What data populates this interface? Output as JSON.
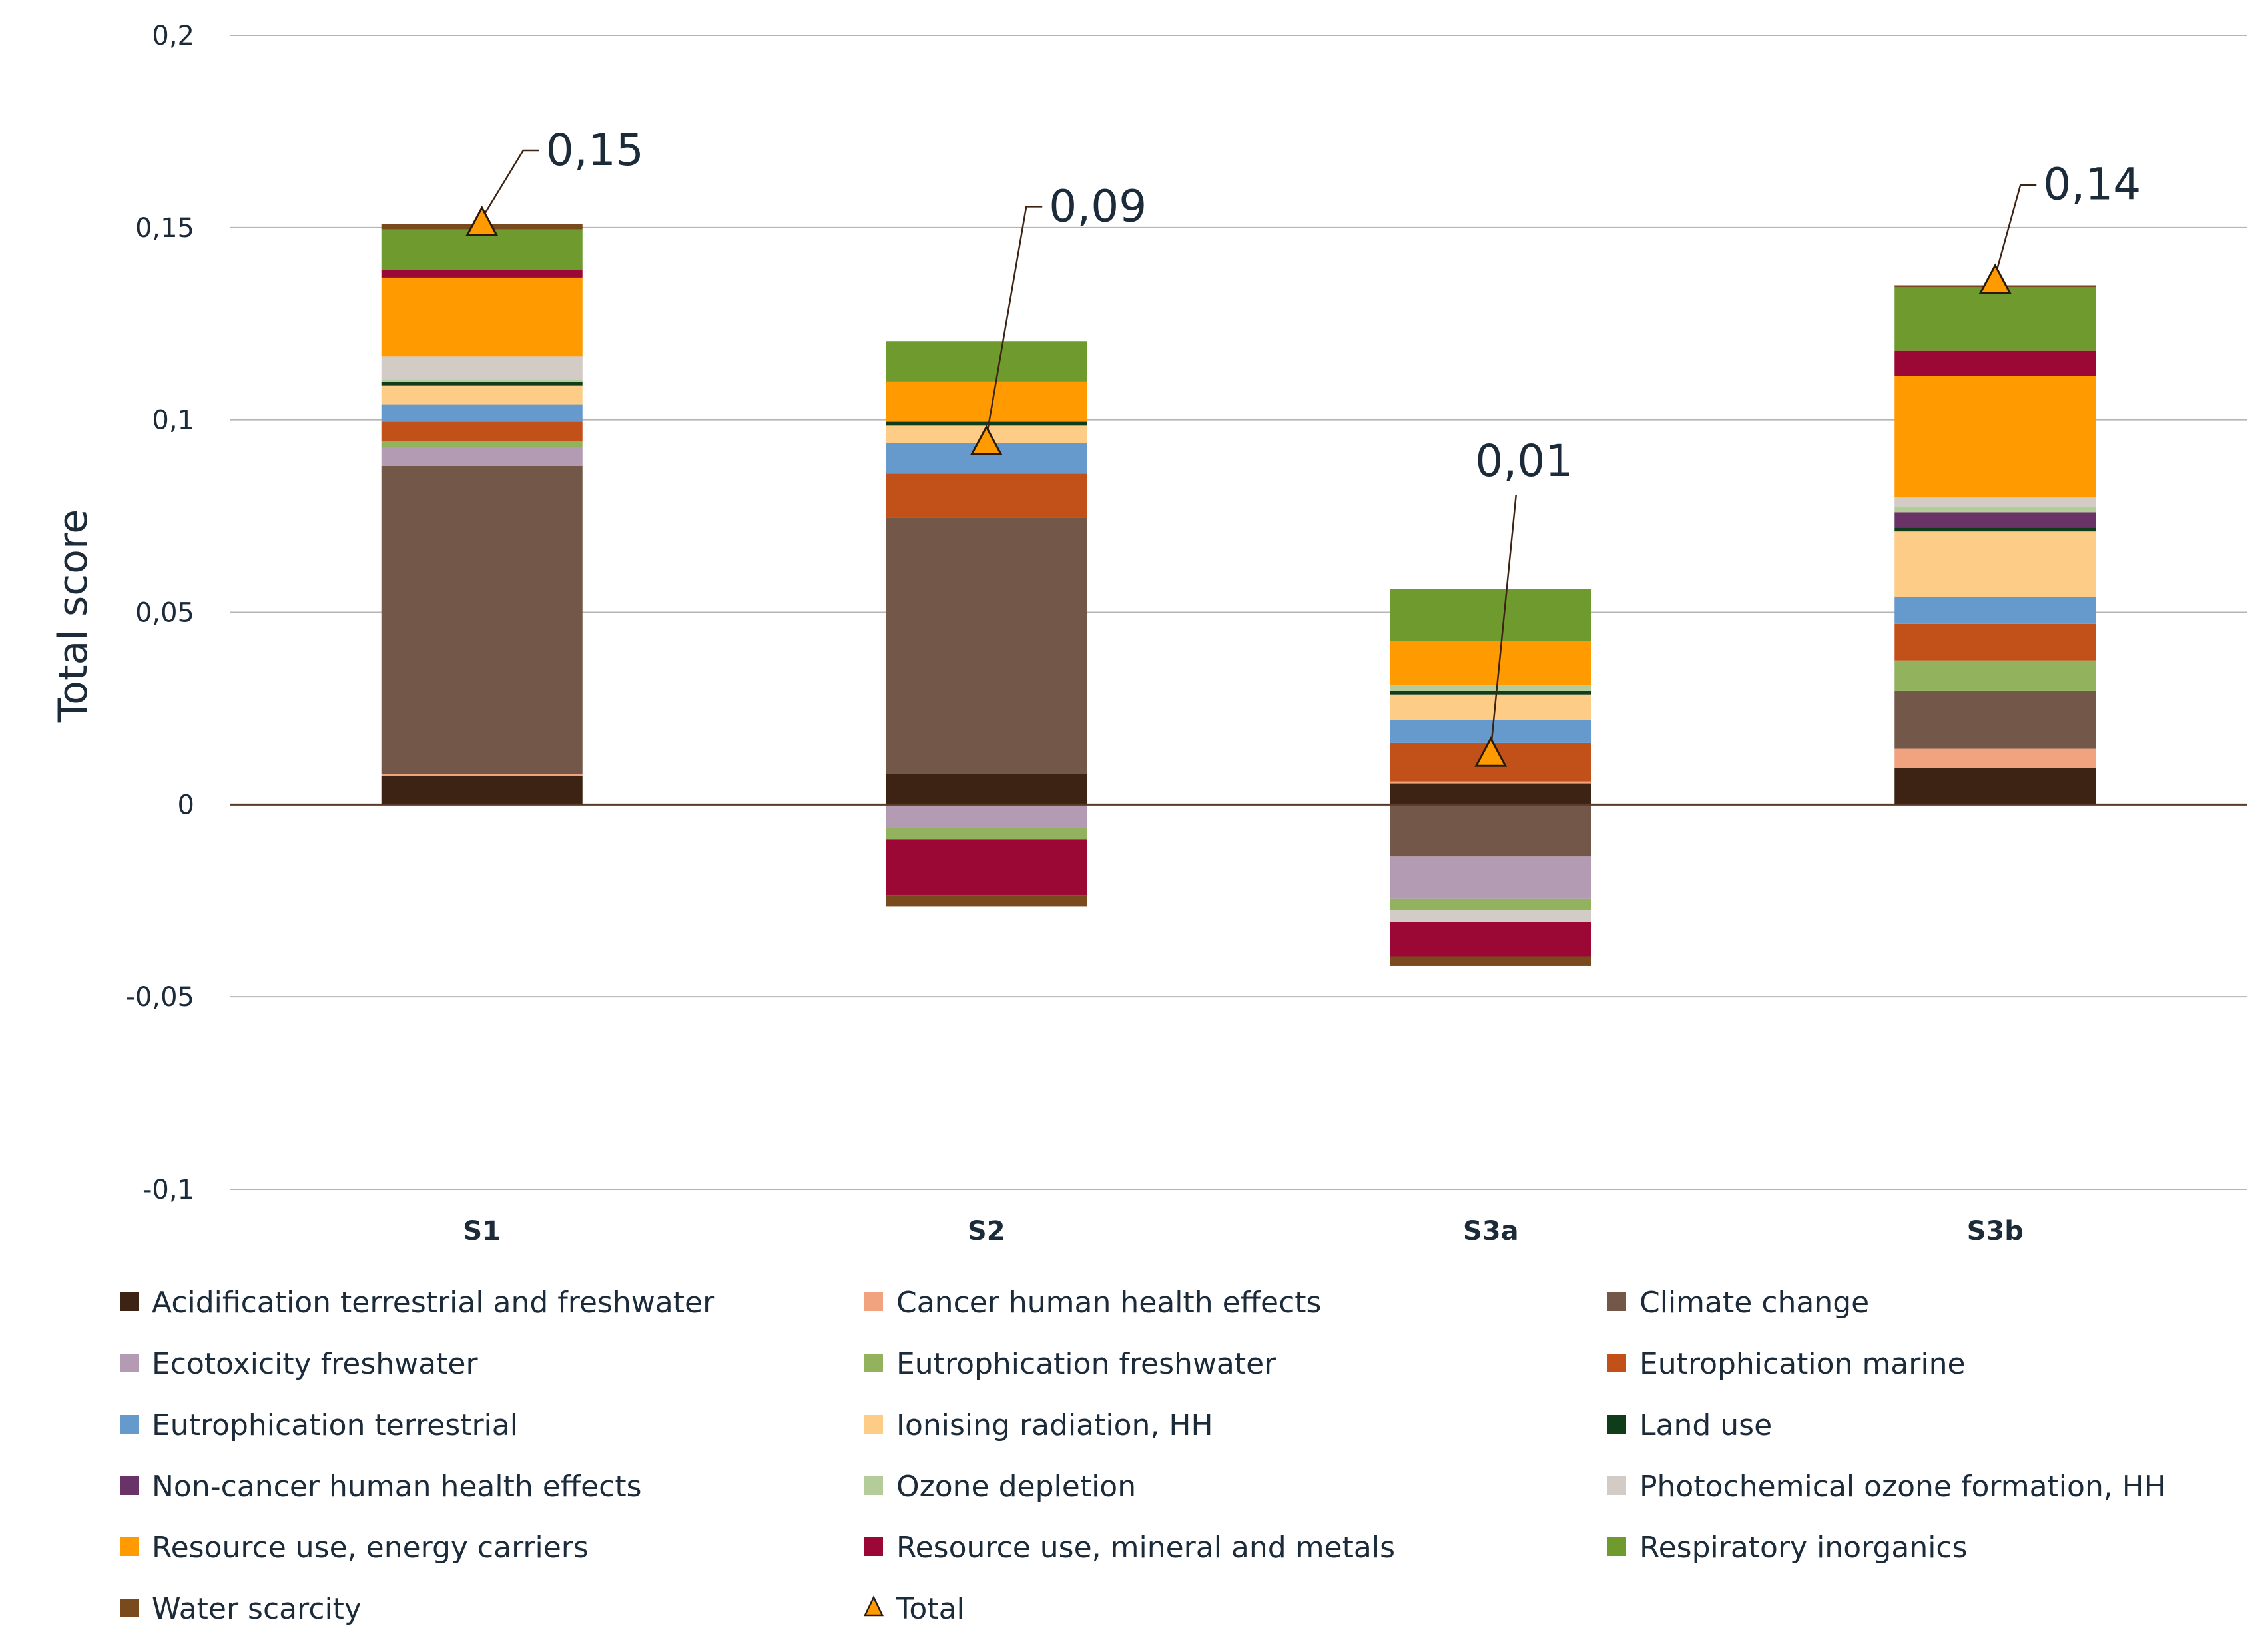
{
  "chart_data": {
    "type": "bar",
    "stacked": true,
    "title": "",
    "xlabel": "",
    "ylabel": "Total score",
    "ylim": [
      -0.1,
      0.2
    ],
    "yticks": [
      -0.1,
      -0.05,
      0,
      0.05,
      0.1,
      0.15,
      0.2
    ],
    "ytick_labels": [
      "-0,1",
      "-0,05",
      "0",
      "0,05",
      "0,1",
      "0,15",
      "0,2"
    ],
    "grid": true,
    "legend_position": "bottom",
    "categories": [
      "S1",
      "S2",
      "S3a",
      "S3b"
    ],
    "series": [
      {
        "name": "Acidification terrestrial and freshwater",
        "color": "#3d2314",
        "values": [
          0.0075,
          0.008,
          0.0055,
          0.0095
        ]
      },
      {
        "name": "Cancer human health effects",
        "color": "#f0a37e",
        "values": [
          0.0005,
          0,
          0.0005,
          0.005
        ]
      },
      {
        "name": "Climate change",
        "color": "#73584a",
        "values": [
          0.08,
          0.0665,
          -0.0135,
          0.015
        ]
      },
      {
        "name": "Ecotoxicity freshwater",
        "color": "#b49bb4",
        "values": [
          0.005,
          -0.006,
          -0.011,
          0
        ]
      },
      {
        "name": "Eutrophication freshwater",
        "color": "#92b25e",
        "values": [
          0.0015,
          -0.003,
          -0.003,
          0.008
        ]
      },
      {
        "name": "Eutrophication marine",
        "color": "#c25119",
        "values": [
          0.005,
          0.0115,
          0.01,
          0.0095
        ]
      },
      {
        "name": "Eutrophication terrestrial",
        "color": "#6699cc",
        "values": [
          0.0045,
          0.008,
          0.006,
          0.007
        ]
      },
      {
        "name": "Ionising radiation, HH",
        "color": "#fdcd88",
        "values": [
          0.005,
          0.0045,
          0.0065,
          0.017
        ]
      },
      {
        "name": "Land use",
        "color": "#0f3d1a",
        "values": [
          0.001,
          0.001,
          0.001,
          0.001
        ]
      },
      {
        "name": "Non-cancer human health effects",
        "color": "#6a3368",
        "values": [
          0,
          0,
          0,
          0.004
        ]
      },
      {
        "name": "Ozone depletion",
        "color": "#b4cc99",
        "values": [
          0.0005,
          0,
          0.0015,
          0.0015
        ]
      },
      {
        "name": "Photochemical ozone formation, HH",
        "color": "#d2cbc6",
        "values": [
          0.006,
          0,
          -0.003,
          0.0025
        ]
      },
      {
        "name": "Resource use, energy carriers",
        "color": "#ff9a00",
        "values": [
          0.0205,
          0.0105,
          0.0115,
          0.0315
        ]
      },
      {
        "name": "Resource use, mineral and metals",
        "color": "#9c0836",
        "values": [
          0.002,
          -0.0145,
          -0.009,
          0.0065
        ]
      },
      {
        "name": "Respiratory inorganics",
        "color": "#6f9a2e",
        "values": [
          0.0105,
          0.0105,
          0.0135,
          0.0165
        ]
      },
      {
        "name": "Water scarcity",
        "color": "#7a4a1f",
        "values": [
          0.0015,
          -0.003,
          -0.0025,
          0.0005
        ]
      }
    ],
    "total": {
      "name": "Total",
      "color": "#ff9a00",
      "values": [
        0.151,
        0.094,
        0.013,
        0.136
      ],
      "labels": [
        "0,15",
        "0,09",
        "0,01",
        "0,14"
      ]
    }
  }
}
